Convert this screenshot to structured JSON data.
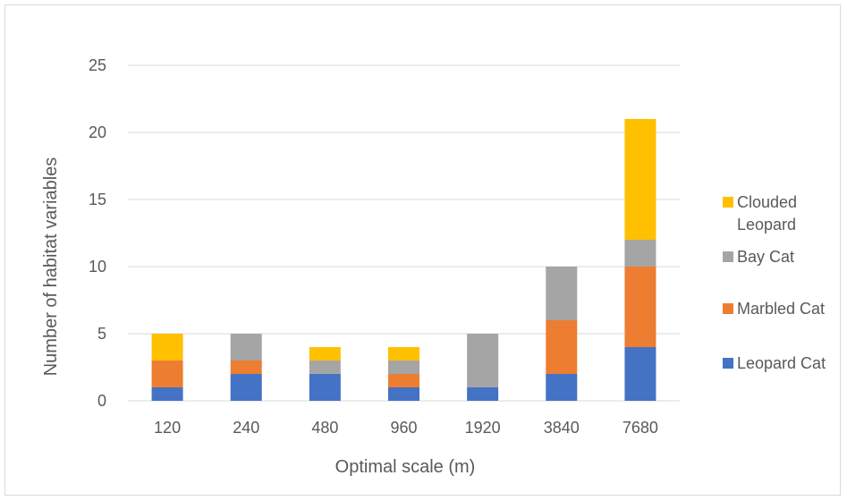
{
  "chart_data": {
    "type": "bar",
    "stacked": true,
    "title": "",
    "xlabel": "Optimal scale (m)",
    "ylabel": "Number of habitat variables",
    "ylim": [
      0,
      25
    ],
    "yticks": [
      0,
      5,
      10,
      15,
      20,
      25
    ],
    "grid": true,
    "legend_position": "right",
    "categories": [
      "120",
      "240",
      "480",
      "960",
      "1920",
      "3840",
      "7680"
    ],
    "series": [
      {
        "name": "Leopard Cat",
        "color": "#4472C4",
        "values": [
          1,
          2,
          2,
          1,
          1,
          2,
          4
        ]
      },
      {
        "name": "Marbled Cat",
        "color": "#ED7D31",
        "values": [
          2,
          1,
          0,
          1,
          0,
          4,
          6
        ]
      },
      {
        "name": "Bay Cat",
        "color": "#A5A5A5",
        "values": [
          0,
          2,
          1,
          1,
          4,
          4,
          2
        ]
      },
      {
        "name": "Clouded Leopard",
        "color": "#FFC000",
        "values": [
          2,
          0,
          1,
          1,
          0,
          0,
          9
        ]
      }
    ],
    "legend_lines": {
      "Clouded Leopard": [
        "Clouded",
        "Leopard"
      ],
      "Bay Cat": [
        "Bay Cat"
      ],
      "Marbled Cat": [
        "Marbled Cat"
      ],
      "Leopard Cat": [
        "Leopard Cat"
      ]
    }
  }
}
